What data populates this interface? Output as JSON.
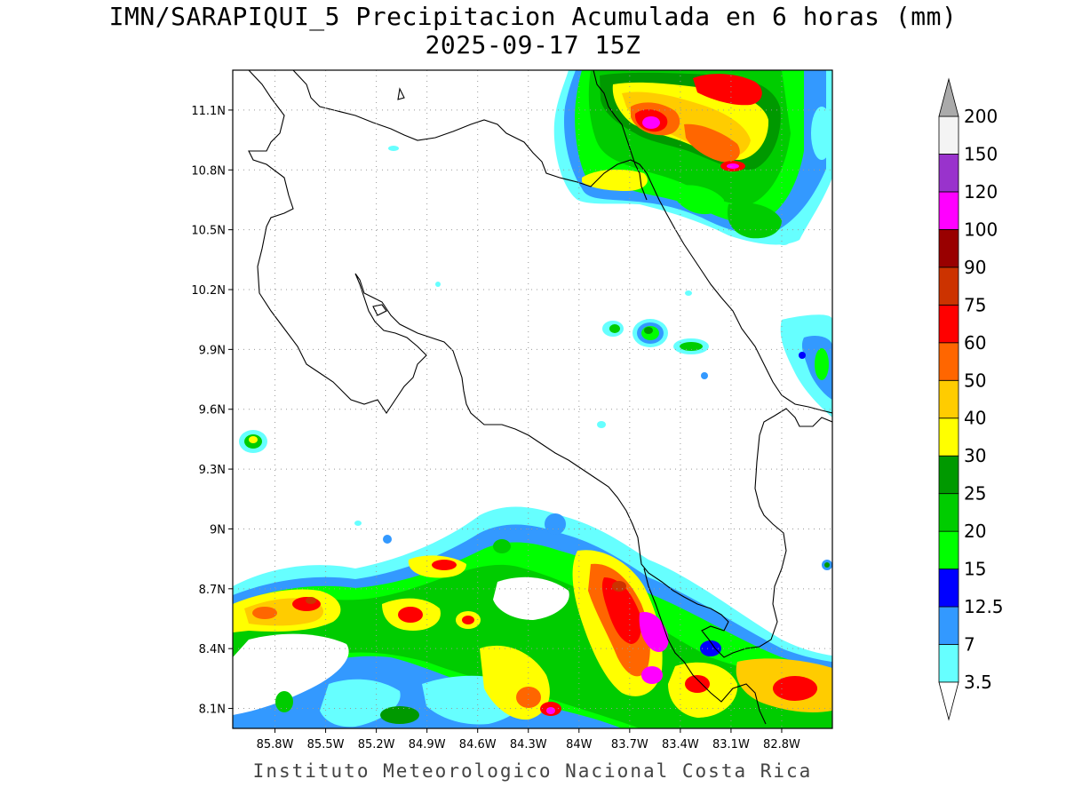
{
  "title_line1": "IMN/SARAPIQUI_5 Precipitacion Acumulada en 6 horas (mm)",
  "title_line2": "2025-09-17 15Z",
  "footer": "Instituto Meteorologico Nacional Costa Rica",
  "map": {
    "lon_range": [
      -86.05,
      -82.5
    ],
    "lat_range": [
      8.0,
      11.3
    ],
    "lon_ticks": [
      "85.8W",
      "85.5W",
      "85.2W",
      "84.9W",
      "84.6W",
      "84.3W",
      "84W",
      "83.7W",
      "83.4W",
      "83.1W",
      "82.8W"
    ],
    "lat_ticks": [
      "11.1N",
      "10.8N",
      "10.5N",
      "10.2N",
      "9.9N",
      "9.6N",
      "9.3N",
      "9N",
      "8.7N",
      "8.4N",
      "8.1N"
    ],
    "grid": "dotted"
  },
  "colorbar": {
    "labels": [
      "3.5",
      "7",
      "12.5",
      "15",
      "20",
      "25",
      "30",
      "40",
      "50",
      "60",
      "75",
      "90",
      "100",
      "120",
      "150",
      "200"
    ],
    "colors": [
      "#ffffff",
      "#66ffff",
      "#3399ff",
      "#0000ff",
      "#00ff00",
      "#00cc00",
      "#009900",
      "#ffff00",
      "#ffcc00",
      "#ff6600",
      "#ff0000",
      "#cc3300",
      "#990000",
      "#ff00ff",
      "#9933cc",
      "#f4f4f4",
      "#aaaaaa"
    ]
  },
  "precip_cells": [
    {
      "lon": -83.6,
      "lat": 11.05,
      "level": 12
    },
    {
      "lon": -83.2,
      "lat": 10.82,
      "level": 12
    },
    {
      "lon": -83.7,
      "lat": 10.7,
      "level": 8
    },
    {
      "lon": -83.4,
      "lat": 9.98,
      "level": 5
    },
    {
      "lon": -83.55,
      "lat": 8.45,
      "level": 12
    },
    {
      "lon": -83.55,
      "lat": 8.25,
      "level": 12
    },
    {
      "lon": -83.7,
      "lat": 8.7,
      "level": 10
    },
    {
      "lon": -84.2,
      "lat": 8.1,
      "level": 12
    },
    {
      "lon": -85.5,
      "lat": 8.65,
      "level": 10
    },
    {
      "lon": -84.9,
      "lat": 8.52,
      "level": 10
    },
    {
      "lon": -84.75,
      "lat": 8.8,
      "level": 10
    },
    {
      "lon": -82.85,
      "lat": 8.25,
      "level": 10
    },
    {
      "lon": -85.95,
      "lat": 9.45,
      "level": 7
    },
    {
      "lon": -82.6,
      "lat": 9.75,
      "level": 5
    }
  ]
}
